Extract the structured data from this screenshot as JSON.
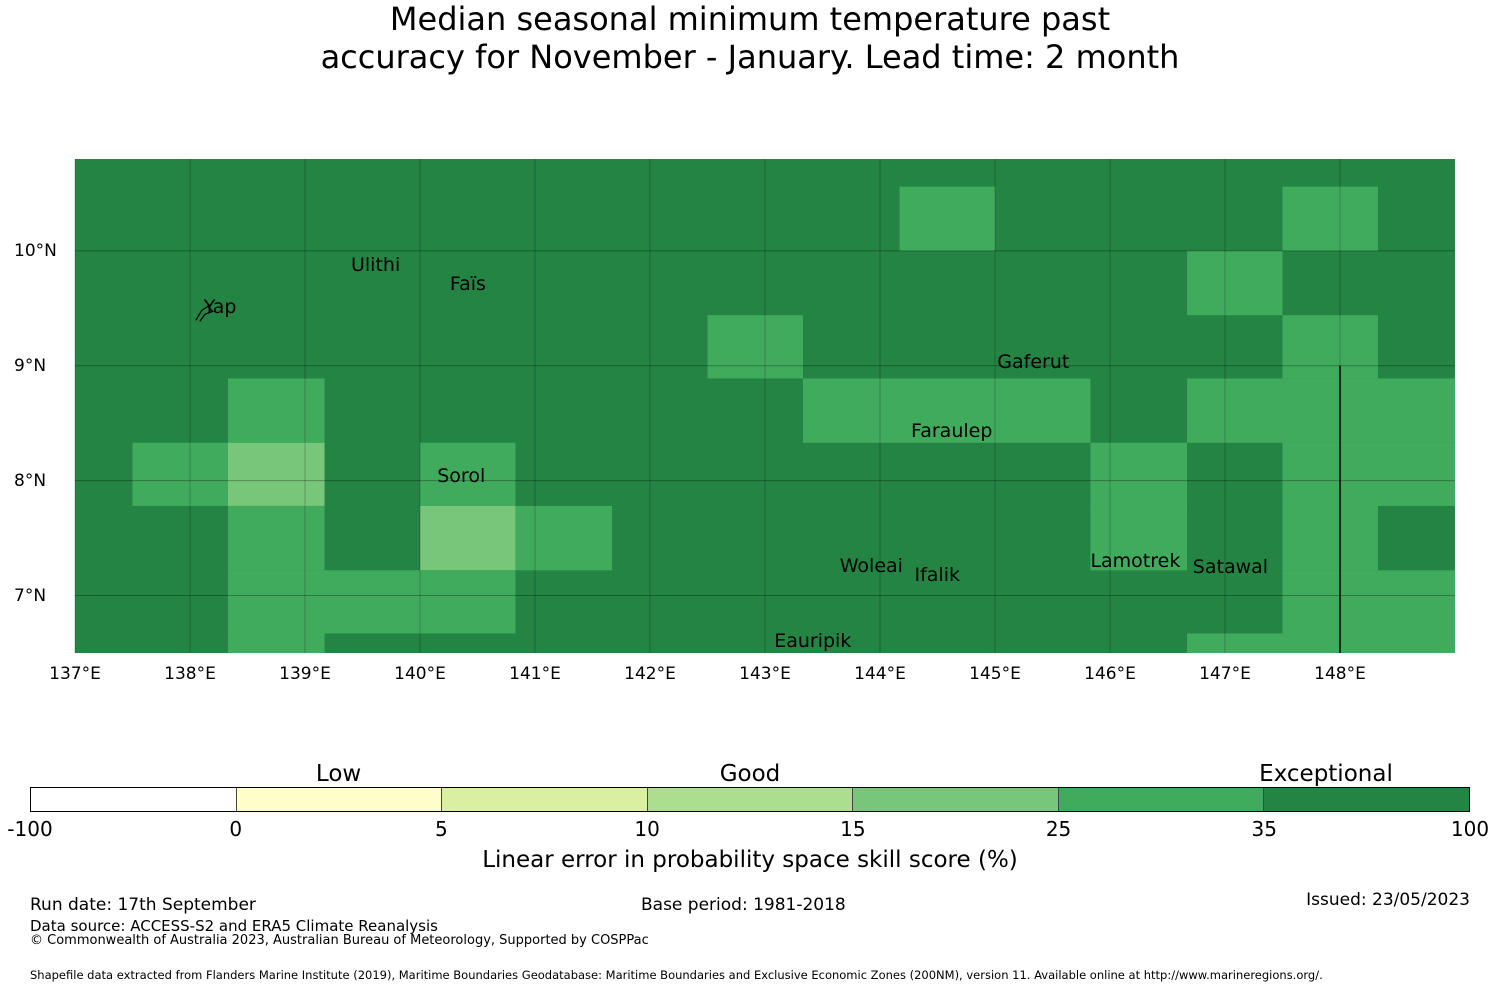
{
  "title": {
    "line1": "Median seasonal minimum temperature past",
    "line2": "accuracy for November - January. Lead time: 2 month"
  },
  "map": {
    "lon_range": [
      137,
      149
    ],
    "lat_range": [
      6.5,
      10.8
    ],
    "lat_ticks": [
      {
        "value": 10,
        "label": "10°N"
      },
      {
        "value": 9,
        "label": "9°N"
      },
      {
        "value": 8,
        "label": "8°N"
      },
      {
        "value": 7,
        "label": "7°N"
      }
    ],
    "lon_ticks": [
      {
        "value": 137,
        "label": "137°E"
      },
      {
        "value": 138,
        "label": "138°E"
      },
      {
        "value": 139,
        "label": "139°E"
      },
      {
        "value": 140,
        "label": "140°E"
      },
      {
        "value": 141,
        "label": "141°E"
      },
      {
        "value": 142,
        "label": "142°E"
      },
      {
        "value": 143,
        "label": "143°E"
      },
      {
        "value": 144,
        "label": "144°E"
      },
      {
        "value": 145,
        "label": "145°E"
      },
      {
        "value": 146,
        "label": "146°E"
      },
      {
        "value": 147,
        "label": "147°E"
      },
      {
        "value": 148,
        "label": "148°E"
      }
    ],
    "background_class": 6,
    "grid_cells": [
      {
        "lon": [
          144.17,
          145.0
        ],
        "lat": [
          10.0,
          10.56
        ],
        "class": 5
      },
      {
        "lon": [
          147.5,
          148.33
        ],
        "lat": [
          10.0,
          10.56
        ],
        "class": 5
      },
      {
        "lon": [
          146.67,
          147.5
        ],
        "lat": [
          9.44,
          10.0
        ],
        "class": 5
      },
      {
        "lon": [
          142.5,
          143.33
        ],
        "lat": [
          8.89,
          9.44
        ],
        "class": 5
      },
      {
        "lon": [
          147.5,
          148.33
        ],
        "lat": [
          8.89,
          9.44
        ],
        "class": 5
      },
      {
        "lon": [
          138.33,
          139.17
        ],
        "lat": [
          8.33,
          8.89
        ],
        "class": 5
      },
      {
        "lon": [
          143.33,
          145.83
        ],
        "lat": [
          8.33,
          8.89
        ],
        "class": 5
      },
      {
        "lon": [
          146.67,
          149.0
        ],
        "lat": [
          8.33,
          8.89
        ],
        "class": 5
      },
      {
        "lon": [
          137.5,
          138.33
        ],
        "lat": [
          7.78,
          8.33
        ],
        "class": 5
      },
      {
        "lon": [
          138.33,
          139.17
        ],
        "lat": [
          7.78,
          8.33
        ],
        "class": 4
      },
      {
        "lon": [
          140.0,
          140.83
        ],
        "lat": [
          7.78,
          8.33
        ],
        "class": 5
      },
      {
        "lon": [
          145.83,
          146.67
        ],
        "lat": [
          7.78,
          8.33
        ],
        "class": 5
      },
      {
        "lon": [
          147.5,
          149.0
        ],
        "lat": [
          7.78,
          8.33
        ],
        "class": 5
      },
      {
        "lon": [
          138.33,
          139.17
        ],
        "lat": [
          7.22,
          7.78
        ],
        "class": 5
      },
      {
        "lon": [
          140.0,
          140.83
        ],
        "lat": [
          7.22,
          7.78
        ],
        "class": 4
      },
      {
        "lon": [
          140.83,
          141.67
        ],
        "lat": [
          7.22,
          7.78
        ],
        "class": 5
      },
      {
        "lon": [
          145.83,
          146.67
        ],
        "lat": [
          7.22,
          7.78
        ],
        "class": 5
      },
      {
        "lon": [
          147.5,
          148.33
        ],
        "lat": [
          7.22,
          7.78
        ],
        "class": 5
      },
      {
        "lon": [
          138.33,
          140.83
        ],
        "lat": [
          6.67,
          7.22
        ],
        "class": 5
      },
      {
        "lon": [
          147.5,
          149.0
        ],
        "lat": [
          6.67,
          7.22
        ],
        "class": 5
      },
      {
        "lon": [
          138.33,
          139.17
        ],
        "lat": [
          6.5,
          6.67
        ],
        "class": 5
      },
      {
        "lon": [
          146.67,
          149.0
        ],
        "lat": [
          6.5,
          6.67
        ],
        "class": 5
      }
    ],
    "boundary_line": {
      "lon": 148.0,
      "lat": [
        6.5,
        9.0
      ]
    },
    "places": [
      {
        "name": "Yap",
        "lon": 138.12,
        "lat": 9.5
      },
      {
        "name": "Ulithi",
        "lon": 139.4,
        "lat": 9.87
      },
      {
        "name": "Faïs",
        "lon": 140.26,
        "lat": 9.7
      },
      {
        "name": "Gaferut",
        "lon": 145.02,
        "lat": 9.02
      },
      {
        "name": "Faraulep",
        "lon": 144.27,
        "lat": 8.42
      },
      {
        "name": "Sorol",
        "lon": 140.15,
        "lat": 8.03
      },
      {
        "name": "Woleai",
        "lon": 143.65,
        "lat": 7.25
      },
      {
        "name": "Ifalik",
        "lon": 144.3,
        "lat": 7.17
      },
      {
        "name": "Lamotrek",
        "lon": 145.83,
        "lat": 7.29
      },
      {
        "name": "Satawal",
        "lon": 146.72,
        "lat": 7.24
      },
      {
        "name": "Eauripik",
        "lon": 143.08,
        "lat": 6.6
      }
    ]
  },
  "legend": {
    "categories": [
      {
        "label": "Low",
        "at": 1.5
      },
      {
        "label": "Good",
        "at": 3.5
      },
      {
        "label": "Exceptional",
        "at": 6.3
      }
    ],
    "colors": [
      "#ffffff",
      "#ffffcc",
      "#d9f0a3",
      "#addd8e",
      "#78c679",
      "#41ab5d",
      "#238443"
    ],
    "ticks": [
      "-100",
      "0",
      "5",
      "10",
      "15",
      "25",
      "35",
      "100"
    ],
    "title": "Linear error in probability space skill score (%)"
  },
  "footer": {
    "run_date": "Run date: 17th September",
    "base_period": "Base period: 1981-2018",
    "issued": "Issued: 23/05/2023",
    "data_source": "Data source: ACCESS-S2 and ERA5 Climate Reanalysis",
    "copyright": "© Commonwealth of Australia 2023, Australian Bureau of Meteorology, Supported by COSPPac",
    "shapefile": "Shapefile data extracted from Flanders Marine Institute (2019), Maritime Boundaries Geodatabase: Maritime Boundaries and Exclusive Economic Zones (200NM), version 11. Available online at http://www.marineregions.org/."
  }
}
